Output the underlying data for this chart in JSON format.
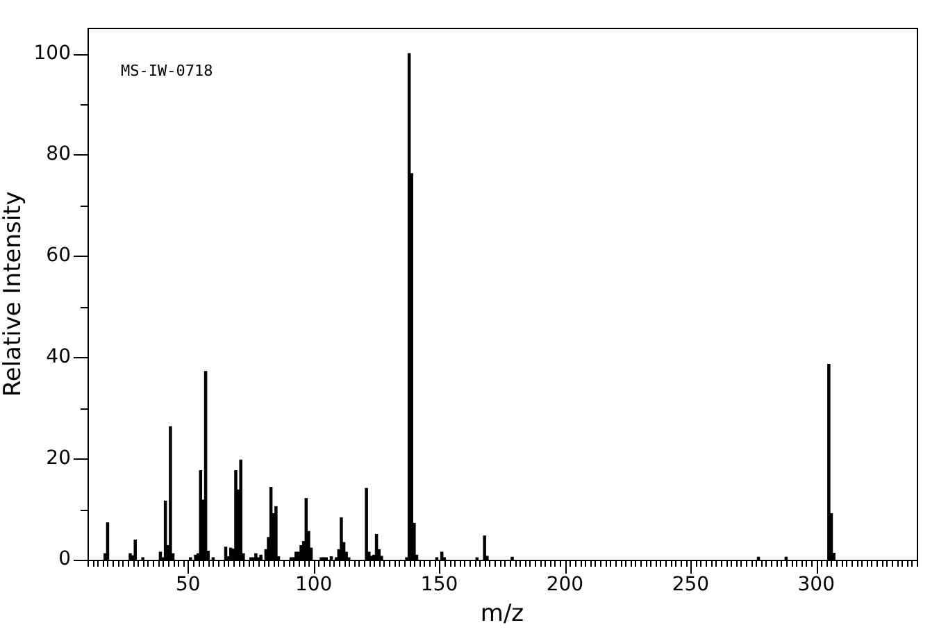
{
  "chart_data": {
    "type": "bar",
    "xlabel": "m/z",
    "ylabel": "Relative Intensity",
    "annotations": [
      "MS-IW-0718"
    ],
    "color": "#000000",
    "x": [
      17,
      18,
      27,
      28,
      29,
      32,
      39,
      40,
      41,
      42,
      43,
      44,
      51,
      53,
      54,
      55,
      56,
      57,
      58,
      60,
      65,
      66,
      67,
      68,
      69,
      70,
      71,
      72,
      75,
      76,
      77,
      78,
      79,
      81,
      82,
      83,
      84,
      85,
      86,
      91,
      92,
      93,
      94,
      95,
      96,
      97,
      98,
      99,
      103,
      104,
      105,
      107,
      109,
      110,
      111,
      112,
      113,
      114,
      121,
      122,
      123,
      124,
      125,
      126,
      127,
      137,
      138,
      139,
      140,
      141,
      149,
      151,
      152,
      165,
      168,
      169,
      179,
      277,
      288,
      305,
      306,
      307
    ],
    "values": [
      1.2,
      7.3,
      1.2,
      0.8,
      3.9,
      0.4,
      1.5,
      0.4,
      11.6,
      2.8,
      26.3,
      1.2,
      0.4,
      0.9,
      1.2,
      17.6,
      11.8,
      37.2,
      1.7,
      0.4,
      2.5,
      0.6,
      2.3,
      2.1,
      17.6,
      13.8,
      19.7,
      1.2,
      0.4,
      0.4,
      1.2,
      0.4,
      0.9,
      2.0,
      4.4,
      14.3,
      9.1,
      10.5,
      0.6,
      0.4,
      0.4,
      1.5,
      1.5,
      2.8,
      3.6,
      12.1,
      5.6,
      2.3,
      0.4,
      0.4,
      0.4,
      0.6,
      0.4,
      2.0,
      8.3,
      3.4,
      1.5,
      0.4,
      14.1,
      1.5,
      0.7,
      0.9,
      5.0,
      2.0,
      0.7,
      0.4,
      100,
      76.3,
      7.2,
      0.9,
      0.4,
      1.5,
      0.4,
      0.4,
      4.7,
      0.7,
      0.5,
      0.5,
      0.5,
      38.6,
      9.1,
      1.3
    ],
    "xlim": [
      10,
      340
    ],
    "ylim": [
      0,
      105
    ],
    "xticks": [
      {
        "value": 10,
        "label": null
      },
      {
        "value": 12,
        "label": null
      },
      {
        "value": 14,
        "label": null
      },
      {
        "value": 16,
        "label": null
      },
      {
        "value": 18,
        "label": null
      },
      {
        "value": 20,
        "label": null
      },
      {
        "value": 22,
        "label": null
      },
      {
        "value": 24,
        "label": null
      },
      {
        "value": 26,
        "label": null
      },
      {
        "value": 28,
        "label": null
      },
      {
        "value": 30,
        "label": null
      },
      {
        "value": 32,
        "label": null
      },
      {
        "value": 34,
        "label": null
      },
      {
        "value": 36,
        "label": null
      },
      {
        "value": 38,
        "label": null
      },
      {
        "value": 40,
        "label": null
      },
      {
        "value": 42,
        "label": null
      },
      {
        "value": 44,
        "label": null
      },
      {
        "value": 46,
        "label": null
      },
      {
        "value": 48,
        "label": null
      },
      50,
      {
        "value": 52,
        "label": null
      },
      {
        "value": 54,
        "label": null
      },
      {
        "value": 56,
        "label": null
      },
      {
        "value": 58,
        "label": null
      },
      {
        "value": 60,
        "label": null
      },
      {
        "value": 62,
        "label": null
      },
      {
        "value": 64,
        "label": null
      },
      {
        "value": 66,
        "label": null
      },
      {
        "value": 68,
        "label": null
      },
      {
        "value": 70,
        "label": null
      },
      {
        "value": 72,
        "label": null
      },
      {
        "value": 74,
        "label": null
      },
      {
        "value": 76,
        "label": null
      },
      {
        "value": 78,
        "label": null
      },
      {
        "value": 80,
        "label": null
      },
      {
        "value": 82,
        "label": null
      },
      {
        "value": 84,
        "label": null
      },
      {
        "value": 86,
        "label": null
      },
      {
        "value": 88,
        "label": null
      },
      {
        "value": 90,
        "label": null
      },
      {
        "value": 92,
        "label": null
      },
      {
        "value": 94,
        "label": null
      },
      {
        "value": 96,
        "label": null
      },
      {
        "value": 98,
        "label": null
      },
      100,
      {
        "value": 102,
        "label": null
      },
      {
        "value": 104,
        "label": null
      },
      {
        "value": 106,
        "label": null
      },
      {
        "value": 108,
        "label": null
      },
      {
        "value": 110,
        "label": null
      },
      {
        "value": 112,
        "label": null
      },
      {
        "value": 114,
        "label": null
      },
      {
        "value": 116,
        "label": null
      },
      {
        "value": 118,
        "label": null
      },
      {
        "value": 120,
        "label": null
      },
      {
        "value": 122,
        "label": null
      },
      {
        "value": 124,
        "label": null
      },
      {
        "value": 126,
        "label": null
      },
      {
        "value": 128,
        "label": null
      },
      {
        "value": 130,
        "label": null
      },
      {
        "value": 132,
        "label": null
      },
      {
        "value": 134,
        "label": null
      },
      {
        "value": 136,
        "label": null
      },
      {
        "value": 138,
        "label": null
      },
      {
        "value": 140,
        "label": null
      },
      {
        "value": 142,
        "label": null
      },
      {
        "value": 144,
        "label": null
      },
      {
        "value": 146,
        "label": null
      },
      {
        "value": 148,
        "label": null
      },
      150,
      {
        "value": 152,
        "label": null
      },
      {
        "value": 154,
        "label": null
      },
      {
        "value": 156,
        "label": null
      },
      {
        "value": 158,
        "label": null
      },
      {
        "value": 160,
        "label": null
      },
      {
        "value": 162,
        "label": null
      },
      {
        "value": 164,
        "label": null
      },
      {
        "value": 166,
        "label": null
      },
      {
        "value": 168,
        "label": null
      },
      {
        "value": 170,
        "label": null
      },
      {
        "value": 172,
        "label": null
      },
      {
        "value": 174,
        "label": null
      },
      {
        "value": 176,
        "label": null
      },
      {
        "value": 178,
        "label": null
      },
      {
        "value": 180,
        "label": null
      },
      {
        "value": 182,
        "label": null
      },
      {
        "value": 184,
        "label": null
      },
      {
        "value": 186,
        "label": null
      },
      {
        "value": 188,
        "label": null
      },
      {
        "value": 190,
        "label": null
      },
      {
        "value": 192,
        "label": null
      },
      {
        "value": 194,
        "label": null
      },
      {
        "value": 196,
        "label": null
      },
      {
        "value": 198,
        "label": null
      },
      200,
      {
        "value": 202,
        "label": null
      },
      {
        "value": 204,
        "label": null
      },
      {
        "value": 206,
        "label": null
      },
      {
        "value": 208,
        "label": null
      },
      {
        "value": 210,
        "label": null
      },
      {
        "value": 212,
        "label": null
      },
      {
        "value": 214,
        "label": null
      },
      {
        "value": 216,
        "label": null
      },
      {
        "value": 218,
        "label": null
      },
      {
        "value": 220,
        "label": null
      },
      {
        "value": 222,
        "label": null
      },
      {
        "value": 224,
        "label": null
      },
      {
        "value": 226,
        "label": null
      },
      {
        "value": 228,
        "label": null
      },
      {
        "value": 230,
        "label": null
      },
      {
        "value": 232,
        "label": null
      },
      {
        "value": 234,
        "label": null
      },
      {
        "value": 236,
        "label": null
      },
      {
        "value": 238,
        "label": null
      },
      {
        "value": 240,
        "label": null
      },
      {
        "value": 242,
        "label": null
      },
      {
        "value": 244,
        "label": null
      },
      {
        "value": 246,
        "label": null
      },
      {
        "value": 248,
        "label": null
      },
      250,
      {
        "value": 252,
        "label": null
      },
      {
        "value": 254,
        "label": null
      },
      {
        "value": 256,
        "label": null
      },
      {
        "value": 258,
        "label": null
      },
      {
        "value": 260,
        "label": null
      },
      {
        "value": 262,
        "label": null
      },
      {
        "value": 264,
        "label": null
      },
      {
        "value": 266,
        "label": null
      },
      {
        "value": 268,
        "label": null
      },
      {
        "value": 270,
        "label": null
      },
      {
        "value": 272,
        "label": null
      },
      {
        "value": 274,
        "label": null
      },
      {
        "value": 276,
        "label": null
      },
      {
        "value": 278,
        "label": null
      },
      {
        "value": 280,
        "label": null
      },
      {
        "value": 282,
        "label": null
      },
      {
        "value": 284,
        "label": null
      },
      {
        "value": 286,
        "label": null
      },
      {
        "value": 288,
        "label": null
      },
      {
        "value": 290,
        "label": null
      },
      {
        "value": 292,
        "label": null
      },
      {
        "value": 294,
        "label": null
      },
      {
        "value": 296,
        "label": null
      },
      {
        "value": 298,
        "label": null
      },
      300,
      {
        "value": 302,
        "label": null
      },
      {
        "value": 304,
        "label": null
      },
      {
        "value": 306,
        "label": null
      },
      {
        "value": 308,
        "label": null
      },
      {
        "value": 310,
        "label": null
      },
      {
        "value": 312,
        "label": null
      },
      {
        "value": 314,
        "label": null
      },
      {
        "value": 316,
        "label": null
      },
      {
        "value": 318,
        "label": null
      },
      {
        "value": 320,
        "label": null
      },
      {
        "value": 322,
        "label": null
      },
      {
        "value": 324,
        "label": null
      },
      {
        "value": 326,
        "label": null
      },
      {
        "value": 328,
        "label": null
      },
      {
        "value": 330,
        "label": null
      },
      {
        "value": 332,
        "label": null
      },
      {
        "value": 334,
        "label": null
      },
      {
        "value": 336,
        "label": null
      },
      {
        "value": 338,
        "label": null
      },
      {
        "value": 340,
        "label": null
      }
    ],
    "yticks": [
      0,
      {
        "value": 10,
        "label": null
      },
      20,
      {
        "value": 30,
        "label": null
      },
      40,
      {
        "value": 50,
        "label": null
      },
      60,
      {
        "value": 70,
        "label": null
      },
      80,
      {
        "value": 90,
        "label": null
      },
      100
    ],
    "grid": false,
    "legend": false
  }
}
